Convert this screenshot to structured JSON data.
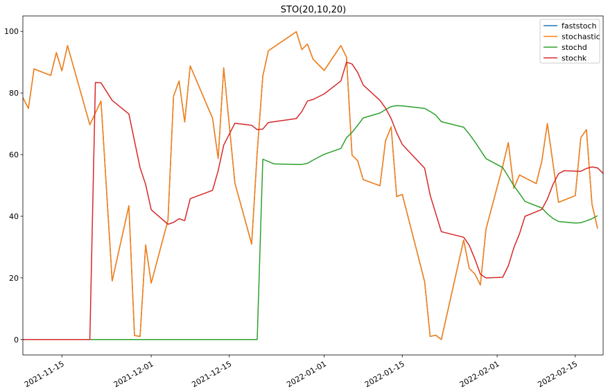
{
  "chart_data": {
    "type": "line",
    "title": "STO(20,10,20)",
    "xlabel": "",
    "ylabel": "",
    "x_type": "date",
    "xlim": [
      "2021-11-08",
      "2022-02-20"
    ],
    "ylim": [
      -5,
      105
    ],
    "x_ticks": [
      {
        "date": "2021-11-15",
        "label": "2021-11-15"
      },
      {
        "date": "2021-12-01",
        "label": "2021-12-01"
      },
      {
        "date": "2021-12-15",
        "label": "2021-12-15"
      },
      {
        "date": "2022-01-01",
        "label": "2022-01-01"
      },
      {
        "date": "2022-01-15",
        "label": "2022-01-15"
      },
      {
        "date": "2022-02-01",
        "label": "2022-02-01"
      },
      {
        "date": "2022-02-15",
        "label": "2022-02-15"
      }
    ],
    "y_ticks": [
      0,
      20,
      40,
      60,
      80,
      100
    ],
    "grid": false,
    "legend_position": "top-right",
    "series": [
      {
        "name": "faststoch",
        "color": "#1f77b4",
        "points": [
          [
            "2021-11-08",
            78.5
          ],
          [
            "2021-11-09",
            75
          ],
          [
            "2021-11-10",
            87.8
          ],
          [
            "2021-11-13",
            85.7
          ],
          [
            "2021-11-14",
            93.1
          ],
          [
            "2021-11-15",
            87.2
          ],
          [
            "2021-11-16",
            95.4
          ],
          [
            "2021-11-20",
            69.7
          ],
          [
            "2021-11-22",
            77.4
          ],
          [
            "2021-11-24",
            19
          ],
          [
            "2021-11-27",
            43.4
          ],
          [
            "2021-11-28",
            1.3
          ],
          [
            "2021-11-29",
            1
          ],
          [
            "2021-11-30",
            30.7
          ],
          [
            "2021-12-01",
            18.3
          ],
          [
            "2021-12-04",
            38.7
          ],
          [
            "2021-12-05",
            78.9
          ],
          [
            "2021-12-06",
            83.9
          ],
          [
            "2021-12-07",
            70.6
          ],
          [
            "2021-12-08",
            88.8
          ],
          [
            "2021-12-12",
            71.8
          ],
          [
            "2021-12-13",
            58.7
          ],
          [
            "2021-12-14",
            88.2
          ],
          [
            "2021-12-16",
            50.8
          ],
          [
            "2021-12-19",
            31
          ],
          [
            "2021-12-20",
            60.8
          ],
          [
            "2021-12-21",
            85.5
          ],
          [
            "2021-12-22",
            93.7
          ],
          [
            "2021-12-27",
            99.9
          ],
          [
            "2021-12-28",
            94.1
          ],
          [
            "2021-12-29",
            95.9
          ],
          [
            "2021-12-30",
            91
          ],
          [
            "2022-01-01",
            87.3
          ],
          [
            "2022-01-04",
            95.4
          ],
          [
            "2022-01-05",
            91.6
          ],
          [
            "2022-01-06",
            59.8
          ],
          [
            "2022-01-07",
            58
          ],
          [
            "2022-01-08",
            51.9
          ],
          [
            "2022-01-11",
            49.9
          ],
          [
            "2022-01-12",
            64.5
          ],
          [
            "2022-01-13",
            69
          ],
          [
            "2022-01-14",
            46.4
          ],
          [
            "2022-01-15",
            47.1
          ],
          [
            "2022-01-19",
            18.8
          ],
          [
            "2022-01-20",
            1
          ],
          [
            "2022-01-21",
            1.4
          ],
          [
            "2022-01-22",
            0
          ],
          [
            "2022-01-26",
            32.3
          ],
          [
            "2022-01-27",
            23.1
          ],
          [
            "2022-01-28",
            21.3
          ],
          [
            "2022-01-29",
            17.7
          ],
          [
            "2022-01-30",
            35.8
          ],
          [
            "2022-02-02",
            56.2
          ],
          [
            "2022-02-03",
            63.9
          ],
          [
            "2022-02-04",
            49.1
          ],
          [
            "2022-02-05",
            53.4
          ],
          [
            "2022-02-08",
            50.6
          ],
          [
            "2022-02-09",
            57.8
          ],
          [
            "2022-02-10",
            70.1
          ],
          [
            "2022-02-12",
            44.5
          ],
          [
            "2022-02-15",
            46.7
          ],
          [
            "2022-02-16",
            65.5
          ],
          [
            "2022-02-17",
            68.1
          ],
          [
            "2022-02-18",
            43.9
          ],
          [
            "2022-02-19",
            36
          ]
        ]
      },
      {
        "name": "stochastic",
        "color": "#ff7f0e",
        "points": [
          [
            "2021-11-08",
            78.5
          ],
          [
            "2021-11-09",
            75
          ],
          [
            "2021-11-10",
            87.8
          ],
          [
            "2021-11-13",
            85.7
          ],
          [
            "2021-11-14",
            93.1
          ],
          [
            "2021-11-15",
            87.2
          ],
          [
            "2021-11-16",
            95.4
          ],
          [
            "2021-11-20",
            69.7
          ],
          [
            "2021-11-22",
            77.4
          ],
          [
            "2021-11-24",
            19
          ],
          [
            "2021-11-27",
            43.4
          ],
          [
            "2021-11-28",
            1.3
          ],
          [
            "2021-11-29",
            1
          ],
          [
            "2021-11-30",
            30.7
          ],
          [
            "2021-12-01",
            18.3
          ],
          [
            "2021-12-04",
            38.7
          ],
          [
            "2021-12-05",
            78.9
          ],
          [
            "2021-12-06",
            83.9
          ],
          [
            "2021-12-07",
            70.6
          ],
          [
            "2021-12-08",
            88.8
          ],
          [
            "2021-12-12",
            71.8
          ],
          [
            "2021-12-13",
            58.7
          ],
          [
            "2021-12-14",
            88.2
          ],
          [
            "2021-12-16",
            50.8
          ],
          [
            "2021-12-19",
            31
          ],
          [
            "2021-12-20",
            60.8
          ],
          [
            "2021-12-21",
            85.5
          ],
          [
            "2021-12-22",
            93.7
          ],
          [
            "2021-12-27",
            99.9
          ],
          [
            "2021-12-28",
            94.1
          ],
          [
            "2021-12-29",
            95.9
          ],
          [
            "2021-12-30",
            91
          ],
          [
            "2022-01-01",
            87.3
          ],
          [
            "2022-01-04",
            95.4
          ],
          [
            "2022-01-05",
            91.6
          ],
          [
            "2022-01-06",
            59.8
          ],
          [
            "2022-01-07",
            58
          ],
          [
            "2022-01-08",
            51.9
          ],
          [
            "2022-01-11",
            49.9
          ],
          [
            "2022-01-12",
            64.5
          ],
          [
            "2022-01-13",
            69
          ],
          [
            "2022-01-14",
            46.4
          ],
          [
            "2022-01-15",
            47.1
          ],
          [
            "2022-01-19",
            18.8
          ],
          [
            "2022-01-20",
            1
          ],
          [
            "2022-01-21",
            1.4
          ],
          [
            "2022-01-22",
            0
          ],
          [
            "2022-01-26",
            32.3
          ],
          [
            "2022-01-27",
            23.1
          ],
          [
            "2022-01-28",
            21.3
          ],
          [
            "2022-01-29",
            17.7
          ],
          [
            "2022-01-30",
            35.8
          ],
          [
            "2022-02-02",
            56.2
          ],
          [
            "2022-02-03",
            63.9
          ],
          [
            "2022-02-04",
            49.1
          ],
          [
            "2022-02-05",
            53.4
          ],
          [
            "2022-02-08",
            50.6
          ],
          [
            "2022-02-09",
            57.8
          ],
          [
            "2022-02-10",
            70.1
          ],
          [
            "2022-02-12",
            44.5
          ],
          [
            "2022-02-15",
            46.7
          ],
          [
            "2022-02-16",
            65.5
          ],
          [
            "2022-02-17",
            68.1
          ],
          [
            "2022-02-18",
            43.9
          ],
          [
            "2022-02-19",
            36
          ]
        ]
      },
      {
        "name": "stochd",
        "color": "#2ca02c",
        "points": [
          [
            "2021-11-08",
            0
          ],
          [
            "2021-12-20",
            0
          ],
          [
            "2021-12-21",
            58.5
          ],
          [
            "2021-12-23",
            57
          ],
          [
            "2021-12-27",
            56.8
          ],
          [
            "2021-12-28",
            56.8
          ],
          [
            "2021-12-29",
            57.2
          ],
          [
            "2021-12-30",
            58.2
          ],
          [
            "2022-01-01",
            60.1
          ],
          [
            "2022-01-04",
            62
          ],
          [
            "2022-01-05",
            65.5
          ],
          [
            "2022-01-06",
            67.2
          ],
          [
            "2022-01-07",
            69.5
          ],
          [
            "2022-01-08",
            71.9
          ],
          [
            "2022-01-11",
            73.5
          ],
          [
            "2022-01-12",
            74.6
          ],
          [
            "2022-01-13",
            75.6
          ],
          [
            "2022-01-14",
            75.9
          ],
          [
            "2022-01-15",
            75.8
          ],
          [
            "2022-01-19",
            75
          ],
          [
            "2022-01-20",
            74
          ],
          [
            "2022-01-21",
            72.8
          ],
          [
            "2022-01-22",
            70.7
          ],
          [
            "2022-01-26",
            68.9
          ],
          [
            "2022-01-27",
            66.7
          ],
          [
            "2022-01-28",
            64.2
          ],
          [
            "2022-01-29",
            61.5
          ],
          [
            "2022-01-30",
            58.7
          ],
          [
            "2022-02-02",
            55.8
          ],
          [
            "2022-02-03",
            52.9
          ],
          [
            "2022-02-04",
            49.9
          ],
          [
            "2022-02-05",
            47.4
          ],
          [
            "2022-02-06",
            44.8
          ],
          [
            "2022-02-09",
            42.7
          ],
          [
            "2022-02-10",
            40.8
          ],
          [
            "2022-02-11",
            39.3
          ],
          [
            "2022-02-12",
            38.3
          ],
          [
            "2022-02-15",
            37.8
          ],
          [
            "2022-02-16",
            37.9
          ],
          [
            "2022-02-17",
            38.5
          ],
          [
            "2022-02-18",
            39.2
          ],
          [
            "2022-02-19",
            40.2
          ]
        ]
      },
      {
        "name": "stochk",
        "color": "#d62728",
        "points": [
          [
            "2021-11-08",
            0
          ],
          [
            "2021-11-20",
            0
          ],
          [
            "2021-11-21",
            83.4
          ],
          [
            "2021-11-22",
            83.3
          ],
          [
            "2021-11-24",
            77.6
          ],
          [
            "2021-11-27",
            73.2
          ],
          [
            "2021-11-29",
            55.8
          ],
          [
            "2021-11-30",
            50.3
          ],
          [
            "2021-12-01",
            42.1
          ],
          [
            "2021-12-04",
            37.4
          ],
          [
            "2021-12-05",
            38
          ],
          [
            "2021-12-06",
            39.2
          ],
          [
            "2021-12-07",
            38.6
          ],
          [
            "2021-12-08",
            45.7
          ],
          [
            "2021-12-12",
            48.4
          ],
          [
            "2021-12-13",
            54.8
          ],
          [
            "2021-12-14",
            63.1
          ],
          [
            "2021-12-16",
            70.2
          ],
          [
            "2021-12-19",
            69.5
          ],
          [
            "2021-12-20",
            68.1
          ],
          [
            "2021-12-21",
            68.3
          ],
          [
            "2021-12-22",
            70.4
          ],
          [
            "2021-12-27",
            71.7
          ],
          [
            "2021-12-28",
            74
          ],
          [
            "2021-12-29",
            77.4
          ],
          [
            "2021-12-30",
            77.9
          ],
          [
            "2022-01-01",
            79.7
          ],
          [
            "2022-01-04",
            83.9
          ],
          [
            "2022-01-05",
            90
          ],
          [
            "2022-01-06",
            89.4
          ],
          [
            "2022-01-07",
            86.7
          ],
          [
            "2022-01-08",
            82.6
          ],
          [
            "2022-01-11",
            77.6
          ],
          [
            "2022-01-12",
            75.1
          ],
          [
            "2022-01-13",
            71.7
          ],
          [
            "2022-01-14",
            67.1
          ],
          [
            "2022-01-15",
            63.3
          ],
          [
            "2022-01-19",
            55.6
          ],
          [
            "2022-01-20",
            46.8
          ],
          [
            "2022-01-22",
            35
          ],
          [
            "2022-01-26",
            33.2
          ],
          [
            "2022-01-27",
            30.6
          ],
          [
            "2022-01-28",
            26.2
          ],
          [
            "2022-01-29",
            21.2
          ],
          [
            "2022-01-30",
            20
          ],
          [
            "2022-02-02",
            20.2
          ],
          [
            "2022-02-03",
            23.9
          ],
          [
            "2022-02-04",
            29.8
          ],
          [
            "2022-02-05",
            34.3
          ],
          [
            "2022-02-06",
            40
          ],
          [
            "2022-02-09",
            42.2
          ],
          [
            "2022-02-10",
            45.6
          ],
          [
            "2022-02-11",
            50.3
          ],
          [
            "2022-02-12",
            53.8
          ],
          [
            "2022-02-13",
            54.8
          ],
          [
            "2022-02-16",
            54.6
          ],
          [
            "2022-02-17",
            55.5
          ],
          [
            "2022-02-18",
            56
          ],
          [
            "2022-02-19",
            55.7
          ],
          [
            "2022-02-20",
            53.9
          ]
        ]
      }
    ]
  }
}
